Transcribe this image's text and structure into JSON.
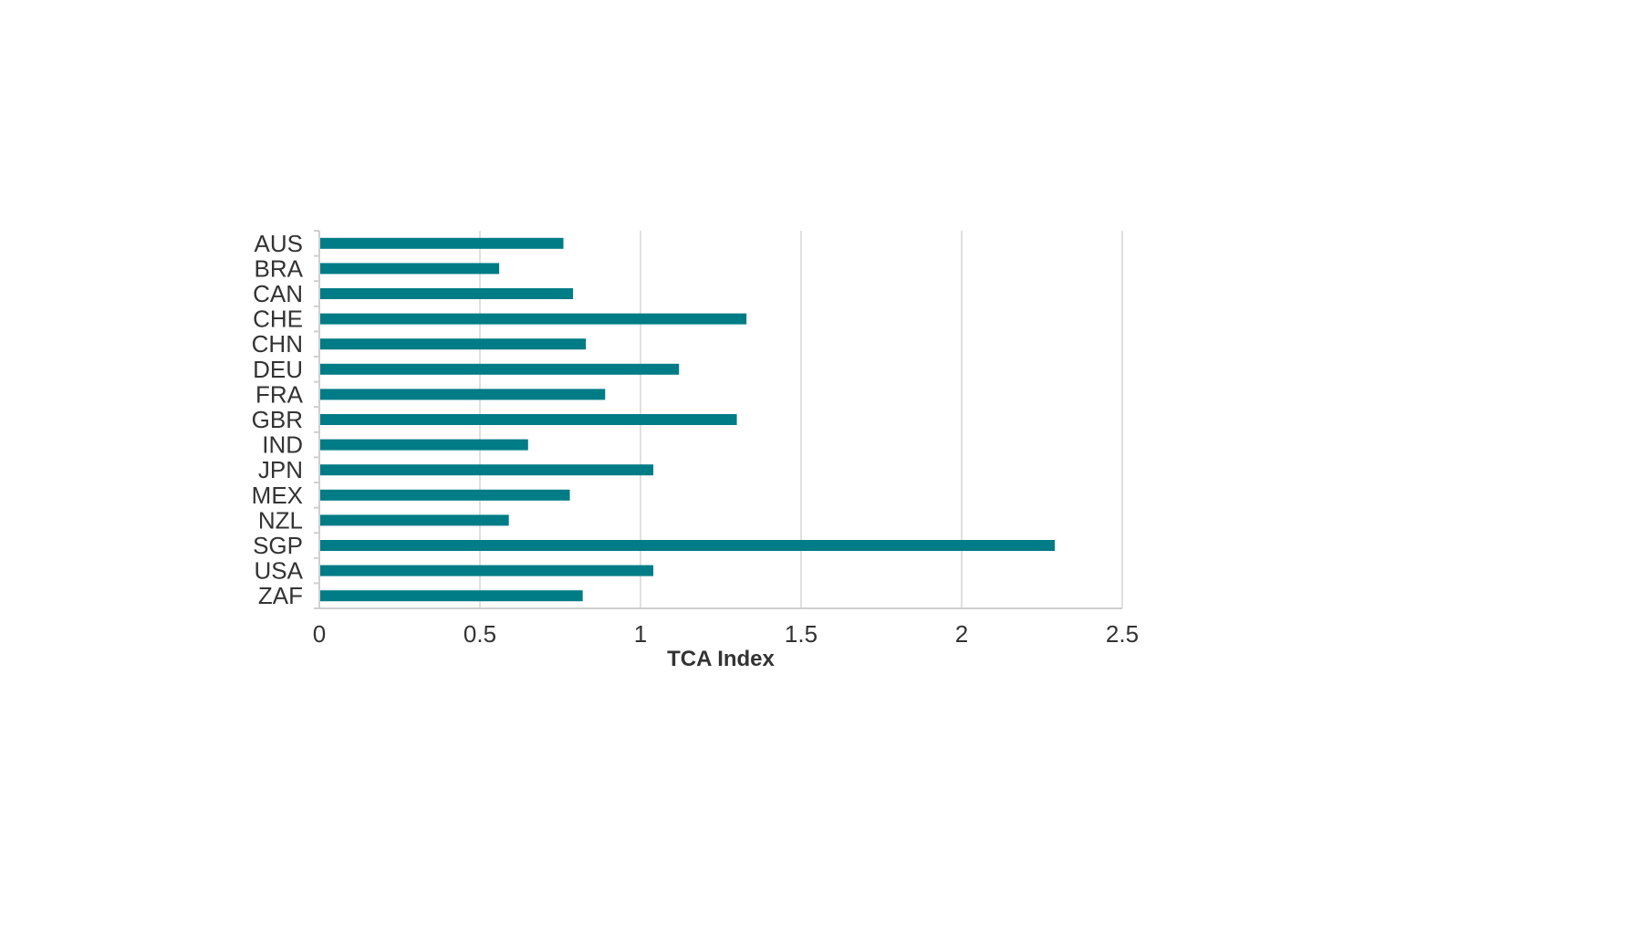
{
  "chart_data": {
    "type": "bar",
    "orientation": "horizontal",
    "title": "",
    "xlabel": "TCA Index",
    "ylabel": "",
    "categories": [
      "AUS",
      "BRA",
      "CAN",
      "CHE",
      "CHN",
      "DEU",
      "FRA",
      "GBR",
      "IND",
      "JPN",
      "MEX",
      "NZL",
      "SGP",
      "USA",
      "ZAF"
    ],
    "values": [
      0.76,
      0.56,
      0.79,
      1.33,
      0.83,
      1.12,
      0.89,
      1.3,
      0.65,
      1.04,
      0.78,
      0.59,
      2.29,
      1.04,
      0.82
    ],
    "xlim": [
      0,
      2.5
    ],
    "xticks": [
      "0",
      "0.5",
      "1",
      "1.5",
      "2",
      "2.5"
    ],
    "xtick_values": [
      0,
      0.5,
      1,
      1.5,
      2,
      2.5
    ],
    "grid": true,
    "legend": "none",
    "colors": {
      "bar": "#007c86",
      "grid": "#e0e0e0",
      "axis": "#cfcfcf",
      "text": "#333333"
    }
  }
}
